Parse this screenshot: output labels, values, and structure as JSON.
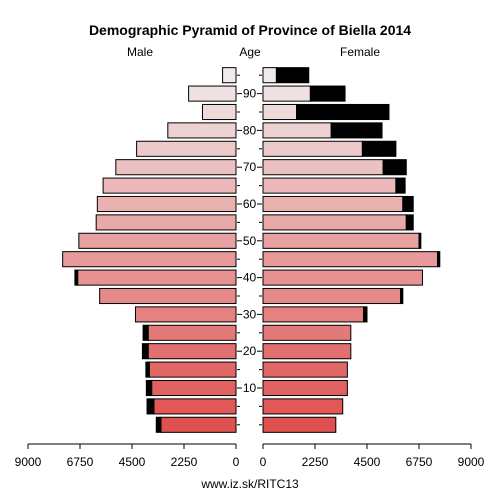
{
  "chart_data": {
    "type": "bar",
    "title": "Demographic Pyramid of Province of Biella 2014",
    "left_label": "Male",
    "center_label": "Age",
    "right_label": "Female",
    "footer": "www.iz.sk/RITC13",
    "age_groups": [
      "0-4",
      "5-9",
      "10-14",
      "15-19",
      "20-24",
      "25-29",
      "30-34",
      "35-39",
      "40-44",
      "45-49",
      "50-54",
      "55-59",
      "60-64",
      "65-69",
      "70-74",
      "75-79",
      "80-84",
      "85-89",
      "90-94",
      "95+"
    ],
    "age_ticks": [
      {
        "label": "10",
        "group_index": 2
      },
      {
        "label": "20",
        "group_index": 4
      },
      {
        "label": "30",
        "group_index": 6
      },
      {
        "label": "40",
        "group_index": 8
      },
      {
        "label": "50",
        "group_index": 10
      },
      {
        "label": "60",
        "group_index": 12
      },
      {
        "label": "70",
        "group_index": 14
      },
      {
        "label": "80",
        "group_index": 16
      },
      {
        "label": "90",
        "group_index": 18
      }
    ],
    "x_ticks_left": [
      "9000",
      "6750",
      "4500",
      "2250",
      "0"
    ],
    "x_ticks_left_values": [
      9000,
      6750,
      4500,
      2250,
      0
    ],
    "x_ticks_right": [
      "0",
      "2250",
      "4500",
      "6750",
      "9000"
    ],
    "x_ticks_right_values": [
      0,
      2250,
      4500,
      6750,
      9000
    ],
    "xlim": [
      0,
      9000
    ],
    "series": [
      {
        "name": "Male",
        "values": [
          3250,
          3550,
          3650,
          3750,
          3800,
          3800,
          4350,
          5900,
          6850,
          7500,
          6800,
          6050,
          6000,
          5750,
          5200,
          4300,
          2950,
          1450,
          2050,
          580
        ],
        "surplus": [
          200,
          300,
          230,
          150,
          250,
          220,
          0,
          0,
          120,
          0,
          0,
          0,
          0,
          0,
          0,
          0,
          0,
          0,
          0,
          0
        ]
      },
      {
        "name": "Female",
        "values": [
          3150,
          3450,
          3650,
          3650,
          3800,
          3800,
          4350,
          5950,
          6900,
          7550,
          6750,
          6200,
          6050,
          5750,
          5200,
          4300,
          2950,
          1450,
          2050,
          580
        ],
        "surplus": [
          0,
          0,
          0,
          0,
          0,
          0,
          150,
          100,
          0,
          100,
          80,
          300,
          450,
          400,
          1000,
          1450,
          2200,
          4000,
          1500,
          1400
        ]
      }
    ],
    "colors": {
      "young": "#df5050",
      "old": "#f1eaea",
      "surplus": "#000000",
      "outline": "#000000"
    }
  }
}
